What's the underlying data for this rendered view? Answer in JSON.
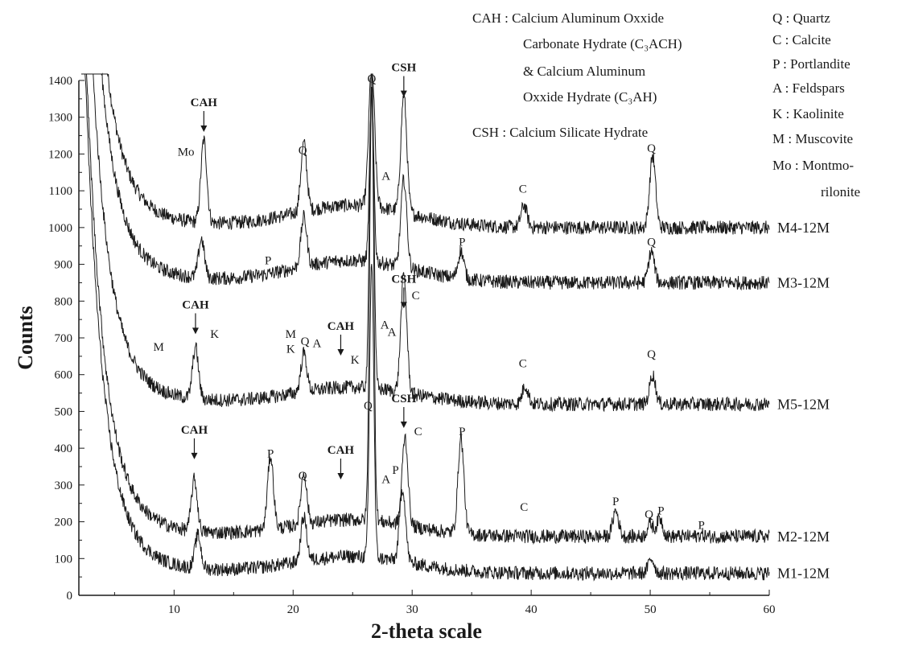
{
  "chart_data": {
    "type": "line",
    "title": "",
    "xlabel": "2-theta scale",
    "ylabel": "Counts",
    "xlim": [
      2,
      60
    ],
    "ylim": [
      0,
      1400
    ],
    "x_ticks": [
      "10",
      "20",
      "30",
      "40",
      "50",
      "60"
    ],
    "y_ticks": [
      "0",
      "100",
      "200",
      "300",
      "400",
      "500",
      "600",
      "700",
      "800",
      "900",
      "1000",
      "1100",
      "1200",
      "1300",
      "1400"
    ],
    "grid": false,
    "series": [
      {
        "name": "M4-12M",
        "baseline": 1000,
        "peaks": [
          {
            "x": 12.5,
            "y": 1225
          },
          {
            "x": 20.9,
            "y": 1185
          },
          {
            "x": 26.6,
            "y": 1380
          },
          {
            "x": 29.3,
            "y": 1320
          },
          {
            "x": 39.4,
            "y": 1060
          },
          {
            "x": 50.2,
            "y": 1195
          }
        ]
      },
      {
        "name": "M3-12M",
        "baseline": 850,
        "peaks": [
          {
            "x": 12.3,
            "y": 955
          },
          {
            "x": 20.9,
            "y": 985
          },
          {
            "x": 26.6,
            "y": 1300
          },
          {
            "x": 29.3,
            "y": 1090
          },
          {
            "x": 34.1,
            "y": 925
          },
          {
            "x": 50.1,
            "y": 935
          }
        ]
      },
      {
        "name": "M5-12M",
        "baseline": 520,
        "peaks": [
          {
            "x": 11.8,
            "y": 660
          },
          {
            "x": 20.9,
            "y": 625
          },
          {
            "x": 26.6,
            "y": 1400
          },
          {
            "x": 29.3,
            "y": 840
          },
          {
            "x": 39.5,
            "y": 570
          },
          {
            "x": 50.2,
            "y": 600
          }
        ]
      },
      {
        "name": "M2-12M",
        "baseline": 160,
        "peaks": [
          {
            "x": 11.7,
            "y": 300
          },
          {
            "x": 18.1,
            "y": 360
          },
          {
            "x": 20.9,
            "y": 300
          },
          {
            "x": 26.6,
            "y": 1330
          },
          {
            "x": 29.4,
            "y": 400
          },
          {
            "x": 34.1,
            "y": 420
          },
          {
            "x": 47.1,
            "y": 230
          },
          {
            "x": 50.0,
            "y": 195
          },
          {
            "x": 50.8,
            "y": 210
          },
          {
            "x": 54.3,
            "y": 165
          }
        ]
      },
      {
        "name": "M1-12M",
        "baseline": 60,
        "peaks": [
          {
            "x": 12.0,
            "y": 150
          },
          {
            "x": 20.9,
            "y": 180
          },
          {
            "x": 26.6,
            "y": 860
          },
          {
            "x": 29.2,
            "y": 260
          },
          {
            "x": 50.1,
            "y": 100
          }
        ]
      }
    ],
    "annotations": [
      {
        "text": "Mo",
        "x": 11.0,
        "y": 1195,
        "bold": false
      },
      {
        "text": "CAH",
        "x": 12.5,
        "y": 1330,
        "bold": true,
        "arrow": true
      },
      {
        "text": "Q",
        "x": 20.8,
        "y": 1200,
        "bold": false
      },
      {
        "text": "Q",
        "x": 26.6,
        "y": 1395,
        "bold": false
      },
      {
        "text": "CSH",
        "x": 29.3,
        "y": 1425,
        "bold": true,
        "arrow": true
      },
      {
        "text": "A",
        "x": 27.8,
        "y": 1130,
        "bold": false
      },
      {
        "text": "C",
        "x": 39.3,
        "y": 1095,
        "bold": false
      },
      {
        "text": "Q",
        "x": 50.1,
        "y": 1205,
        "bold": false
      },
      {
        "text": "P",
        "x": 17.9,
        "y": 900,
        "bold": false
      },
      {
        "text": "P",
        "x": 34.2,
        "y": 950,
        "bold": false
      },
      {
        "text": "Q",
        "x": 50.1,
        "y": 950,
        "bold": false
      },
      {
        "text": "CSH",
        "x": 29.3,
        "y": 850,
        "bold": true,
        "arrow": true
      },
      {
        "text": "C",
        "x": 30.3,
        "y": 805,
        "bold": false
      },
      {
        "text": "CAH",
        "x": 11.8,
        "y": 780,
        "bold": true,
        "arrow": true
      },
      {
        "text": "M",
        "x": 8.7,
        "y": 665,
        "bold": false
      },
      {
        "text": "K",
        "x": 13.4,
        "y": 700,
        "bold": false
      },
      {
        "text": "M",
        "x": 19.8,
        "y": 700,
        "bold": false
      },
      {
        "text": "K",
        "x": 19.8,
        "y": 660,
        "bold": false
      },
      {
        "text": "Q",
        "x": 21.0,
        "y": 680,
        "bold": false
      },
      {
        "text": "A",
        "x": 22.0,
        "y": 675,
        "bold": false
      },
      {
        "text": "CAH",
        "x": 24.0,
        "y": 722,
        "bold": true,
        "arrow": true
      },
      {
        "text": "K",
        "x": 25.2,
        "y": 630,
        "bold": false
      },
      {
        "text": "A",
        "x": 27.7,
        "y": 725,
        "bold": false
      },
      {
        "text": "A",
        "x": 28.3,
        "y": 705,
        "bold": false
      },
      {
        "text": "C",
        "x": 39.3,
        "y": 620,
        "bold": false
      },
      {
        "text": "Q",
        "x": 50.1,
        "y": 645,
        "bold": false
      },
      {
        "text": "CAH",
        "x": 11.7,
        "y": 440,
        "bold": true,
        "arrow": true
      },
      {
        "text": "P",
        "x": 18.1,
        "y": 375,
        "bold": false
      },
      {
        "text": "Q",
        "x": 20.8,
        "y": 315,
        "bold": false
      },
      {
        "text": "CAH",
        "x": 24.0,
        "y": 385,
        "bold": true,
        "arrow": true
      },
      {
        "text": "Q",
        "x": 26.3,
        "y": 505,
        "bold": false
      },
      {
        "text": "A",
        "x": 27.8,
        "y": 305,
        "bold": false
      },
      {
        "text": "P",
        "x": 28.6,
        "y": 330,
        "bold": false
      },
      {
        "text": "CSH",
        "x": 29.3,
        "y": 525,
        "bold": true,
        "arrow": true
      },
      {
        "text": "C",
        "x": 30.5,
        "y": 435,
        "bold": false
      },
      {
        "text": "P",
        "x": 34.2,
        "y": 435,
        "bold": false
      },
      {
        "text": "C",
        "x": 39.4,
        "y": 230,
        "bold": false
      },
      {
        "text": "P",
        "x": 47.1,
        "y": 245,
        "bold": false
      },
      {
        "text": "Q",
        "x": 49.9,
        "y": 210,
        "bold": false
      },
      {
        "text": "P",
        "x": 50.9,
        "y": 220,
        "bold": false
      },
      {
        "text": "P",
        "x": 54.3,
        "y": 180,
        "bold": false
      }
    ]
  },
  "legend_left": [
    {
      "text": "CAH : Calcium Aluminum Oxxide"
    },
    {
      "text": "Carbonate Hydrate (C₃ACH)"
    },
    {
      "text": "& Calcium Aluminum"
    },
    {
      "text": "Oxxide Hydrate (C₃AH)"
    },
    {
      "text": "CSH : Calcium Silicate Hydrate"
    }
  ],
  "legend_right": [
    {
      "text": "Q : Quartz"
    },
    {
      "text": "C : Calcite"
    },
    {
      "text": "P : Portlandite"
    },
    {
      "text": "A : Feldspars"
    },
    {
      "text": "K : Kaolinite"
    },
    {
      "text": "M : Muscovite"
    },
    {
      "text": "Mo : Montmo-"
    },
    {
      "text": "rilonite"
    }
  ]
}
